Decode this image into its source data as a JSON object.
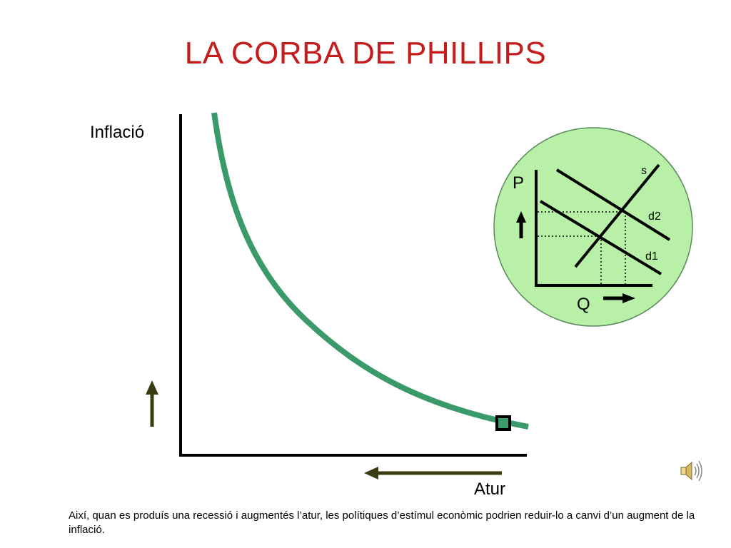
{
  "title": "LA CORBA DE PHILLIPS",
  "y_axis_label": "Inflació",
  "x_axis_label": "Atur",
  "inset": {
    "price_label": "P",
    "quantity_label": "Q",
    "supply_label": "s",
    "demand_new_label": "d2",
    "demand_old_label": "d1"
  },
  "caption": "Així, quan es produís una recessió i augmentés l’atur, les polítiques d’estímul econòmic podrien reduir-lo a canvi d’un augment de la inflació.",
  "colors": {
    "title": "#c41c1c",
    "curve": "#3a9a6a",
    "inset_fill": "#b8f0a8",
    "arrow": "#3b3b10"
  },
  "icons": {
    "speaker": "speaker-icon"
  }
}
